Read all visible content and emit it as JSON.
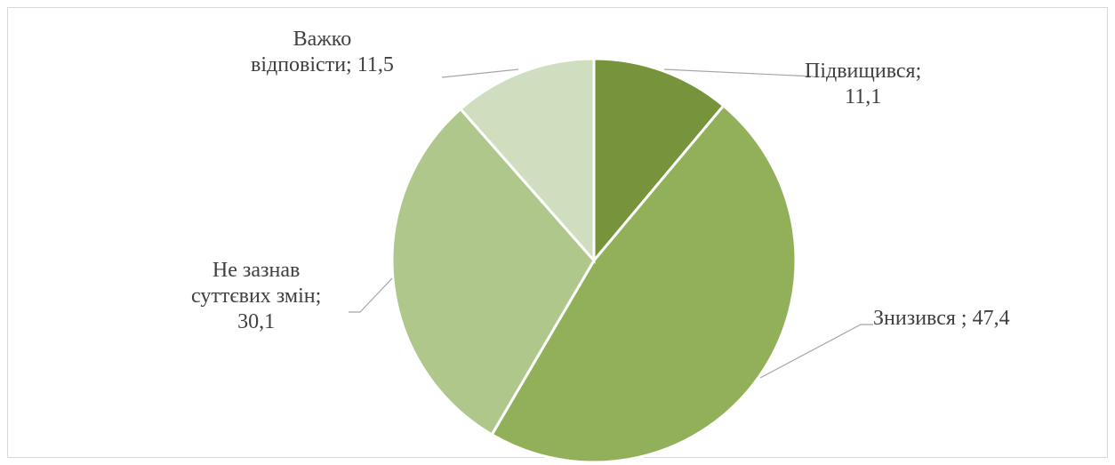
{
  "chart_data": {
    "type": "pie",
    "slices": [
      {
        "label": "Підвищився",
        "value": 11.1,
        "value_text": "11,1",
        "color": "#77933c"
      },
      {
        "label": "Знизився ",
        "value": 47.4,
        "value_text": "47,4",
        "color": "#92b05a"
      },
      {
        "label": "Не зазнав суттєвих змін",
        "value": 30.1,
        "value_text": "30,1",
        "color": "#afc78a"
      },
      {
        "label": "Важко відповісти",
        "value": 11.5,
        "value_text": "11,5",
        "color": "#d0dec0"
      }
    ]
  },
  "labels": {
    "s0": {
      "line1": "Підвищився;",
      "line2": "11,1"
    },
    "s1": {
      "line1": "Знизився ; 47,4"
    },
    "s2": {
      "line1": "Не зазнав",
      "line2": "суттєвих змін;",
      "line3": "30,1"
    },
    "s3": {
      "line1": "Важко",
      "line2": "відповісти; 11,5"
    }
  }
}
